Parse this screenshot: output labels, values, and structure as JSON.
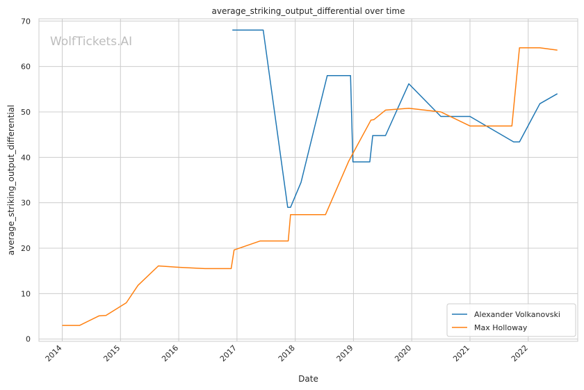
{
  "chart_data": {
    "type": "line",
    "title": "average_striking_output_differential over time",
    "xlabel": "Date",
    "ylabel": "average_striking_output_differential",
    "watermark": "WolfTickets.AI",
    "xlim": [
      2013.6,
      2022.85
    ],
    "ylim": [
      -0.5,
      70.5
    ],
    "yticks": [
      0,
      10,
      20,
      30,
      40,
      50,
      60,
      70
    ],
    "xticks": [
      2014,
      2015,
      2016,
      2017,
      2018,
      2019,
      2020,
      2021,
      2022
    ],
    "grid": true,
    "legend_position": "lower-right",
    "colors": {
      "alexander": "#1f77b4",
      "max": "#ff7f0e",
      "grid": "#cccccc"
    },
    "series": [
      {
        "name": "Alexander Volkanovski",
        "color": "#1f77b4",
        "x": [
          2016.92,
          2017.45,
          2017.87,
          2017.92,
          2018.1,
          2018.55,
          2018.95,
          2018.99,
          2019.28,
          2019.33,
          2019.55,
          2019.95,
          2020.5,
          2021.0,
          2021.75,
          2021.85,
          2022.2,
          2022.5
        ],
        "y": [
          68.0,
          68.0,
          29.0,
          29.0,
          34.5,
          58.0,
          58.0,
          39.0,
          39.0,
          44.8,
          44.8,
          56.2,
          49.0,
          49.0,
          43.4,
          43.4,
          51.8,
          54.0
        ]
      },
      {
        "name": "Max Holloway",
        "color": "#ff7f0e",
        "x": [
          2014.0,
          2014.3,
          2014.63,
          2014.75,
          2015.1,
          2015.3,
          2015.65,
          2016.0,
          2016.45,
          2016.9,
          2016.95,
          2017.4,
          2017.88,
          2017.92,
          2018.52,
          2018.92,
          2019.3,
          2019.35,
          2019.55,
          2019.95,
          2020.5,
          2021.0,
          2021.3,
          2021.72,
          2021.85,
          2022.2,
          2022.5
        ],
        "y": [
          3.0,
          3.0,
          5.1,
          5.2,
          8.0,
          11.8,
          16.1,
          15.8,
          15.5,
          15.5,
          19.6,
          21.6,
          21.6,
          27.4,
          27.4,
          39.2,
          48.2,
          48.3,
          50.4,
          50.8,
          50.0,
          46.9,
          46.9,
          46.9,
          64.1,
          64.1,
          63.6
        ]
      }
    ]
  }
}
